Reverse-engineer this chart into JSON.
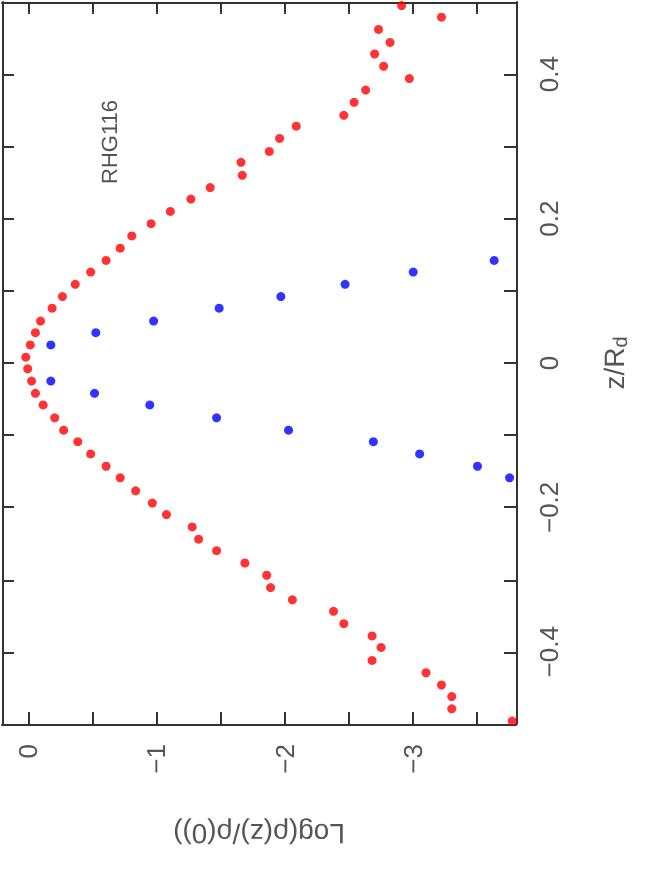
{
  "chart_data": {
    "type": "scatter",
    "xlabel": "Log(ρ(z)/ρ(0))",
    "ylabel": "z/R$_{d}$",
    "annotations": [
      "RHG116"
    ],
    "xlim": [
      0.2,
      -3.8
    ],
    "ylim": [
      -0.5,
      0.5
    ],
    "xticks": [
      0,
      {
        "value": -0.5,
        "label": null
      },
      -1,
      {
        "value": -1.5,
        "label": null
      },
      -2,
      {
        "value": -2.5,
        "label": null
      },
      -3,
      {
        "value": -3.5,
        "label": null
      }
    ],
    "yticks": [
      {
        "value": -0.5,
        "label": null
      },
      -0.4,
      {
        "value": -0.3,
        "label": null
      },
      -0.2,
      {
        "value": -0.1,
        "label": null
      },
      0,
      {
        "value": 0.1,
        "label": null
      },
      0.2,
      {
        "value": 0.3,
        "label": null
      },
      0.4,
      {
        "value": 0.5,
        "label": null
      }
    ],
    "marker": "circle",
    "series": [
      {
        "color": "#ff0000",
        "x": [
          -2.91,
          -3.22,
          -2.73,
          -2.82,
          -2.7,
          -2.77,
          -2.97,
          -2.63,
          -2.54,
          -2.46,
          -2.09,
          -1.96,
          -1.88,
          -1.66,
          -1.67,
          -1.42,
          -1.27,
          -1.11,
          -0.96,
          -0.81,
          -0.72,
          -0.61,
          -0.49,
          -0.37,
          -0.27,
          -0.19,
          -0.1,
          -0.06,
          -0.02,
          0.015,
          0.0,
          -0.03,
          -0.06,
          -0.12,
          -0.21,
          -0.28,
          -0.39,
          -0.49,
          -0.61,
          -0.72,
          -0.84,
          -0.97,
          -1.08,
          -1.28,
          -1.33,
          -1.47,
          -1.69,
          -1.86,
          -1.89,
          -2.06,
          -2.38,
          -2.46,
          -2.68,
          -2.75,
          -2.68,
          -3.1,
          -3.22,
          -3.3,
          -3.3,
          -3.77
        ],
        "values": [
          0.495,
          0.479,
          0.462,
          0.444,
          0.428,
          0.411,
          0.394,
          0.378,
          0.361,
          0.343,
          0.328,
          0.311,
          0.293,
          0.278,
          0.26,
          0.243,
          0.227,
          0.21,
          0.193,
          0.176,
          0.159,
          0.142,
          0.126,
          0.109,
          0.092,
          0.076,
          0.058,
          0.042,
          0.025,
          0.008,
          -0.008,
          -0.025,
          -0.042,
          -0.058,
          -0.076,
          -0.093,
          -0.109,
          -0.126,
          -0.143,
          -0.159,
          -0.177,
          -0.194,
          -0.21,
          -0.227,
          -0.244,
          -0.26,
          -0.277,
          -0.294,
          -0.311,
          -0.328,
          -0.344,
          -0.361,
          -0.378,
          -0.394,
          -0.412,
          -0.429,
          -0.446,
          -0.462,
          -0.479,
          -0.496
        ]
      },
      {
        "color": "#0000ff",
        "x": [
          -3.63,
          -3.0,
          -2.47,
          -1.97,
          -1.49,
          -0.98,
          -0.53,
          -0.18,
          -0.18,
          -0.52,
          -0.95,
          -1.47,
          -2.03,
          -2.69,
          -3.05,
          -3.5,
          -3.75
        ],
        "values": [
          0.142,
          0.126,
          0.109,
          0.092,
          0.076,
          0.058,
          0.042,
          0.025,
          -0.025,
          -0.042,
          -0.058,
          -0.076,
          -0.093,
          -0.109,
          -0.126,
          -0.143,
          -0.159
        ]
      }
    ]
  }
}
